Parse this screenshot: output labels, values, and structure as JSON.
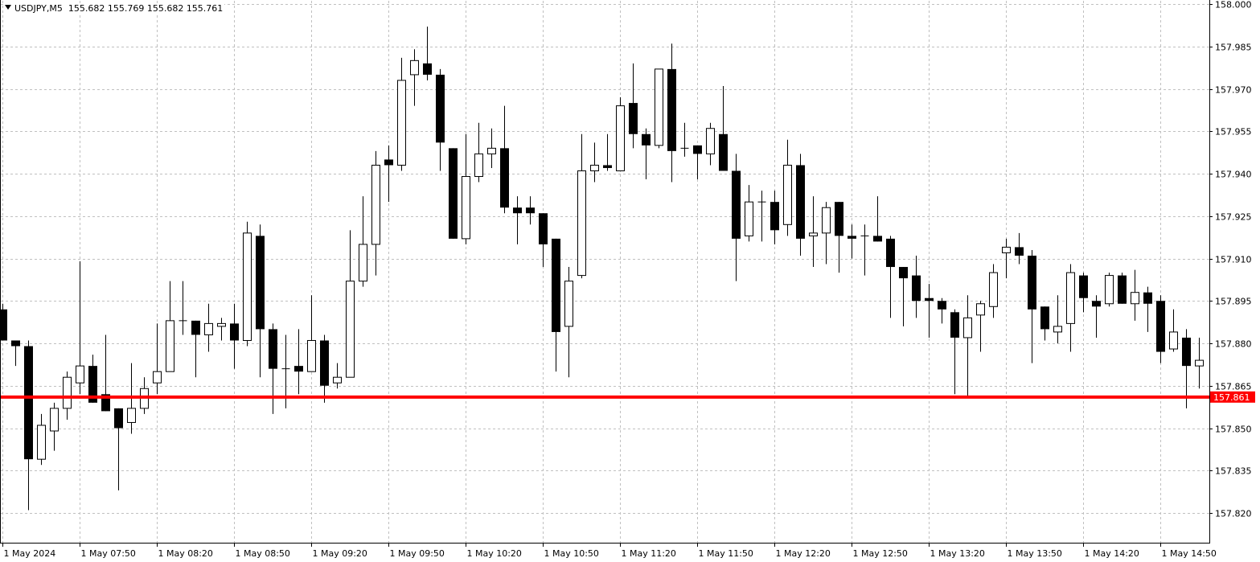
{
  "header": {
    "symbol_timeframe": "USDJPY,M5",
    "ohlc_text": "155.682 155.769 155.682 155.761"
  },
  "colors": {
    "bull_fill": "#ffffff",
    "bear_fill": "#000000",
    "wick": "#000000",
    "grid": "#c0c0c0",
    "hline": "#ff0000",
    "hline_label_text": "#ffffff"
  },
  "chart_data": {
    "type": "candlestick",
    "title": "USDJPY,M5",
    "ylim": [
      157.82,
      158.0
    ],
    "grid": true,
    "y_ticks": [
      "158.000",
      "157.985",
      "157.970",
      "157.955",
      "157.940",
      "157.925",
      "157.910",
      "157.895",
      "157.880",
      "157.865",
      "157.850",
      "157.835",
      "157.820"
    ],
    "x_tick_labels": [
      "1 May 2024",
      "1 May 07:50",
      "1 May 08:20",
      "1 May 08:50",
      "1 May 09:20",
      "1 May 09:50",
      "1 May 10:20",
      "1 May 10:50",
      "1 May 11:20",
      "1 May 11:50",
      "1 May 12:20",
      "1 May 12:50",
      "1 May 13:20",
      "1 May 13:50",
      "1 May 14:20",
      "1 May 14:50"
    ],
    "x_tick_candle_index": [
      0,
      6,
      12,
      18,
      24,
      30,
      36,
      42,
      48,
      54,
      60,
      66,
      72,
      78,
      84,
      90
    ],
    "horizontal_line": {
      "value": 157.861,
      "label": "157.861"
    },
    "candle_fields": [
      "open",
      "high",
      "low",
      "close"
    ],
    "candles": [
      [
        157.892,
        157.894,
        157.881,
        157.881
      ],
      [
        157.881,
        157.881,
        157.872,
        157.879
      ],
      [
        157.879,
        157.881,
        157.821,
        157.839
      ],
      [
        157.839,
        157.855,
        157.837,
        157.851
      ],
      [
        157.849,
        157.859,
        157.842,
        157.857
      ],
      [
        157.857,
        157.87,
        157.853,
        157.868
      ],
      [
        157.866,
        157.909,
        157.862,
        157.872
      ],
      [
        157.872,
        157.876,
        157.859,
        157.859
      ],
      [
        157.862,
        157.883,
        157.856,
        157.856
      ],
      [
        157.857,
        157.857,
        157.828,
        157.85
      ],
      [
        157.852,
        157.873,
        157.848,
        157.857
      ],
      [
        157.857,
        157.868,
        157.855,
        157.864
      ],
      [
        157.866,
        157.887,
        157.862,
        157.87
      ],
      [
        157.87,
        157.902,
        157.87,
        157.888
      ],
      [
        157.888,
        157.902,
        157.883,
        157.888
      ],
      [
        157.888,
        157.888,
        157.868,
        157.883
      ],
      [
        157.883,
        157.894,
        157.877,
        157.887
      ],
      [
        157.886,
        157.889,
        157.881,
        157.887
      ],
      [
        157.887,
        157.894,
        157.871,
        157.881
      ],
      [
        157.881,
        157.923,
        157.879,
        157.919
      ],
      [
        157.918,
        157.922,
        157.868,
        157.885
      ],
      [
        157.885,
        157.887,
        157.855,
        157.871
      ],
      [
        157.871,
        157.883,
        157.857,
        157.871
      ],
      [
        157.872,
        157.885,
        157.862,
        157.87
      ],
      [
        157.87,
        157.897,
        157.87,
        157.881
      ],
      [
        157.881,
        157.883,
        157.859,
        157.865
      ],
      [
        157.866,
        157.873,
        157.864,
        157.868
      ],
      [
        157.868,
        157.92,
        157.868,
        157.902
      ],
      [
        157.902,
        157.932,
        157.9,
        157.915
      ],
      [
        157.915,
        157.948,
        157.904,
        157.943
      ],
      [
        157.945,
        157.95,
        157.93,
        157.943
      ],
      [
        157.943,
        157.981,
        157.941,
        157.973
      ],
      [
        157.975,
        157.984,
        157.964,
        157.98
      ],
      [
        157.979,
        157.992,
        157.973,
        157.975
      ],
      [
        157.975,
        157.977,
        157.941,
        157.951
      ],
      [
        157.949,
        157.949,
        157.917,
        157.917
      ],
      [
        157.917,
        157.954,
        157.915,
        157.939
      ],
      [
        157.939,
        157.958,
        157.937,
        157.947
      ],
      [
        157.947,
        157.956,
        157.942,
        157.949
      ],
      [
        157.949,
        157.964,
        157.926,
        157.928
      ],
      [
        157.928,
        157.932,
        157.915,
        157.926
      ],
      [
        157.928,
        157.932,
        157.922,
        157.926
      ],
      [
        157.926,
        157.926,
        157.907,
        157.915
      ],
      [
        157.917,
        157.917,
        157.87,
        157.884
      ],
      [
        157.886,
        157.907,
        157.868,
        157.902
      ],
      [
        157.904,
        157.954,
        157.903,
        157.941
      ],
      [
        157.941,
        157.951,
        157.937,
        157.943
      ],
      [
        157.943,
        157.954,
        157.941,
        157.942
      ],
      [
        157.941,
        157.967,
        157.941,
        157.964
      ],
      [
        157.965,
        157.979,
        157.949,
        157.954
      ],
      [
        157.954,
        157.956,
        157.938,
        157.95
      ],
      [
        157.95,
        157.977,
        157.949,
        157.977
      ],
      [
        157.977,
        157.986,
        157.937,
        157.948
      ],
      [
        157.949,
        157.958,
        157.946,
        157.949
      ],
      [
        157.95,
        157.95,
        157.938,
        157.947
      ],
      [
        157.947,
        157.958,
        157.943,
        157.956
      ],
      [
        157.954,
        157.971,
        157.941,
        157.941
      ],
      [
        157.941,
        157.947,
        157.902,
        157.917
      ],
      [
        157.918,
        157.936,
        157.916,
        157.93
      ],
      [
        157.93,
        157.934,
        157.916,
        157.93
      ],
      [
        157.93,
        157.934,
        157.915,
        157.92
      ],
      [
        157.922,
        157.952,
        157.918,
        157.943
      ],
      [
        157.943,
        157.947,
        157.911,
        157.917
      ],
      [
        157.918,
        157.932,
        157.907,
        157.919
      ],
      [
        157.919,
        157.93,
        157.908,
        157.928
      ],
      [
        157.93,
        157.93,
        157.905,
        157.918
      ],
      [
        157.918,
        157.922,
        157.91,
        157.917
      ],
      [
        157.918,
        157.922,
        157.904,
        157.918
      ],
      [
        157.918,
        157.932,
        157.916,
        157.916
      ],
      [
        157.917,
        157.918,
        157.889,
        157.907
      ],
      [
        157.907,
        157.907,
        157.886,
        157.903
      ],
      [
        157.904,
        157.911,
        157.889,
        157.895
      ],
      [
        157.896,
        157.901,
        157.882,
        157.895
      ],
      [
        157.895,
        157.896,
        157.887,
        157.892
      ],
      [
        157.891,
        157.892,
        157.862,
        157.882
      ],
      [
        157.882,
        157.897,
        157.861,
        157.889
      ],
      [
        157.89,
        157.895,
        157.877,
        157.894
      ],
      [
        157.893,
        157.908,
        157.889,
        157.905
      ],
      [
        157.912,
        157.917,
        157.903,
        157.914
      ],
      [
        157.914,
        157.919,
        157.908,
        157.911
      ],
      [
        157.911,
        157.913,
        157.873,
        157.892
      ],
      [
        157.893,
        157.893,
        157.881,
        157.885
      ],
      [
        157.884,
        157.897,
        157.88,
        157.886
      ],
      [
        157.887,
        157.908,
        157.877,
        157.905
      ],
      [
        157.904,
        157.905,
        157.891,
        157.896
      ],
      [
        157.895,
        157.897,
        157.882,
        157.893
      ],
      [
        157.894,
        157.905,
        157.893,
        157.904
      ],
      [
        157.904,
        157.905,
        157.894,
        157.894
      ],
      [
        157.894,
        157.906,
        157.888,
        157.898
      ],
      [
        157.898,
        157.9,
        157.884,
        157.894
      ],
      [
        157.895,
        157.897,
        157.873,
        157.877
      ],
      [
        157.878,
        157.892,
        157.877,
        157.884
      ],
      [
        157.882,
        157.885,
        157.857,
        157.872
      ],
      [
        157.872,
        157.882,
        157.864,
        157.874
      ]
    ]
  }
}
